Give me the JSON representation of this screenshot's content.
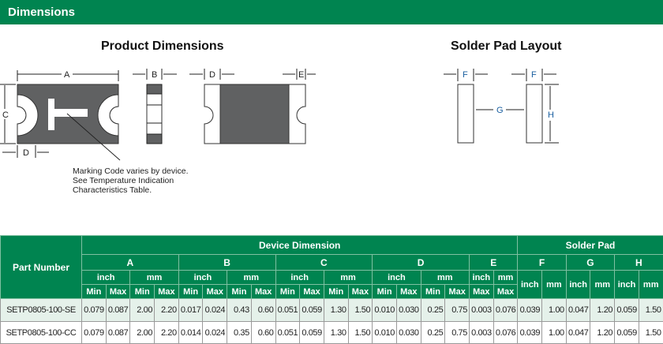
{
  "section_title": "Dimensions",
  "product_dimensions": {
    "title": "Product Dimensions",
    "labels": {
      "A": "A",
      "B": "B",
      "C": "C",
      "D": "D",
      "D2": "D",
      "E": "E"
    },
    "note": [
      "Marking Code varies by device.",
      "See Temperature Indication",
      "Characteristics Table."
    ]
  },
  "solder_pad_layout": {
    "title": "Solder Pad Layout",
    "labels": {
      "F1": "F",
      "F2": "F",
      "G": "G",
      "H": "H"
    }
  },
  "table": {
    "part_number_header": "Part Number",
    "device_dimension_header": "Device Dimension",
    "solder_pad_header": "Solder Pad",
    "groups": [
      "A",
      "B",
      "C",
      "D",
      "E",
      "F",
      "G",
      "H"
    ],
    "unit_inch": "inch",
    "unit_mm": "mm",
    "min": "Min",
    "max": "Max",
    "rows": [
      {
        "part": "SETP0805-100-SE",
        "values": [
          "0.079",
          "0.087",
          "2.00",
          "2.20",
          "0.017",
          "0.024",
          "0.43",
          "0.60",
          "0.051",
          "0.059",
          "1.30",
          "1.50",
          "0.010",
          "0.030",
          "0.25",
          "0.75",
          "0.003",
          "0.076",
          "0.039",
          "1.00",
          "0.047",
          "1.20",
          "0.059",
          "1.50"
        ]
      },
      {
        "part": "SETP0805-100-CC",
        "values": [
          "0.079",
          "0.087",
          "2.00",
          "2.20",
          "0.014",
          "0.024",
          "0.35",
          "0.60",
          "0.051",
          "0.059",
          "1.30",
          "1.50",
          "0.010",
          "0.030",
          "0.25",
          "0.75",
          "0.003",
          "0.076",
          "0.039",
          "1.00",
          "0.047",
          "1.20",
          "0.059",
          "1.50"
        ]
      }
    ]
  },
  "colors": {
    "brand_green": "#008450",
    "row_tint": "#e5f1ea",
    "body_gray": "#606162"
  }
}
